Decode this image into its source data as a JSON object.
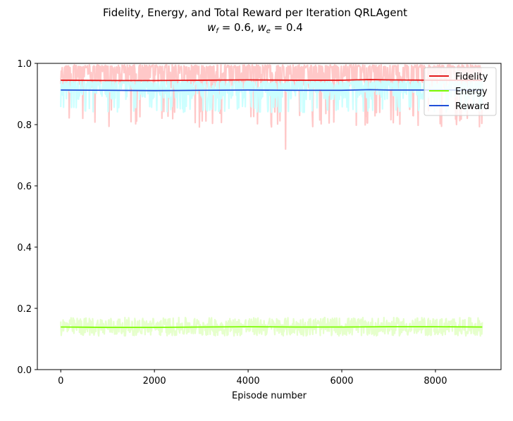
{
  "chart_data": {
    "type": "line",
    "title_line1": "Fidelity, Energy, and Total Reward per Iteration QRLAgent",
    "title_line2_f": "w",
    "title_line2_f_sub": "f",
    "title_line2_eq1": " = 0.6, ",
    "title_line2_e": "w",
    "title_line2_e_sub": "e",
    "title_line2_eq2": " = 0.4",
    "xlabel": "Episode number",
    "ylabel": "",
    "xlim": [
      -500,
      9400
    ],
    "ylim": [
      0.0,
      1.0
    ],
    "x_ticks": [
      0,
      2000,
      4000,
      6000,
      8000
    ],
    "x_tick_labels": [
      "0",
      "2000",
      "4000",
      "6000",
      "8000"
    ],
    "y_ticks": [
      0.0,
      0.2,
      0.4,
      0.6,
      0.8,
      1.0
    ],
    "y_tick_labels": [
      "0.0",
      "0.2",
      "0.4",
      "0.6",
      "0.8",
      "1.0"
    ],
    "grid": false,
    "legend_position": "top-right",
    "episodes": [
      0,
      9000
    ],
    "series": [
      {
        "name": "Fidelity",
        "color": "#e31a1c",
        "band_color": "#ffc8c8",
        "mean": 0.945,
        "raw_range": [
          0.85,
          0.995
        ],
        "raw_min_observed": 0.72,
        "smoothed": [
          [
            0,
            0.945
          ],
          [
            1000,
            0.944
          ],
          [
            2000,
            0.944
          ],
          [
            3000,
            0.945
          ],
          [
            4000,
            0.946
          ],
          [
            5000,
            0.945
          ],
          [
            6000,
            0.945
          ],
          [
            6600,
            0.947
          ],
          [
            7000,
            0.946
          ],
          [
            8000,
            0.945
          ],
          [
            9000,
            0.945
          ]
        ]
      },
      {
        "name": "Energy",
        "color": "#7cfc00",
        "band_color": "#e6ffcc",
        "mean": 0.139,
        "raw_range": [
          0.11,
          0.17
        ],
        "smoothed": [
          [
            0,
            0.139
          ],
          [
            1000,
            0.138
          ],
          [
            2000,
            0.138
          ],
          [
            3000,
            0.139
          ],
          [
            4000,
            0.14
          ],
          [
            5000,
            0.139
          ],
          [
            6000,
            0.139
          ],
          [
            7000,
            0.14
          ],
          [
            8000,
            0.14
          ],
          [
            9000,
            0.139
          ]
        ]
      },
      {
        "name": "Reward",
        "color": "#1f4fd8",
        "band_color": "#ccffff",
        "mean": 0.912,
        "raw_range": [
          0.84,
          0.945
        ],
        "smoothed": [
          [
            0,
            0.913
          ],
          [
            1000,
            0.912
          ],
          [
            2000,
            0.911
          ],
          [
            3000,
            0.912
          ],
          [
            4000,
            0.913
          ],
          [
            5000,
            0.912
          ],
          [
            6000,
            0.912
          ],
          [
            6600,
            0.914
          ],
          [
            7000,
            0.913
          ],
          [
            8000,
            0.913
          ],
          [
            9000,
            0.913
          ]
        ]
      }
    ]
  }
}
